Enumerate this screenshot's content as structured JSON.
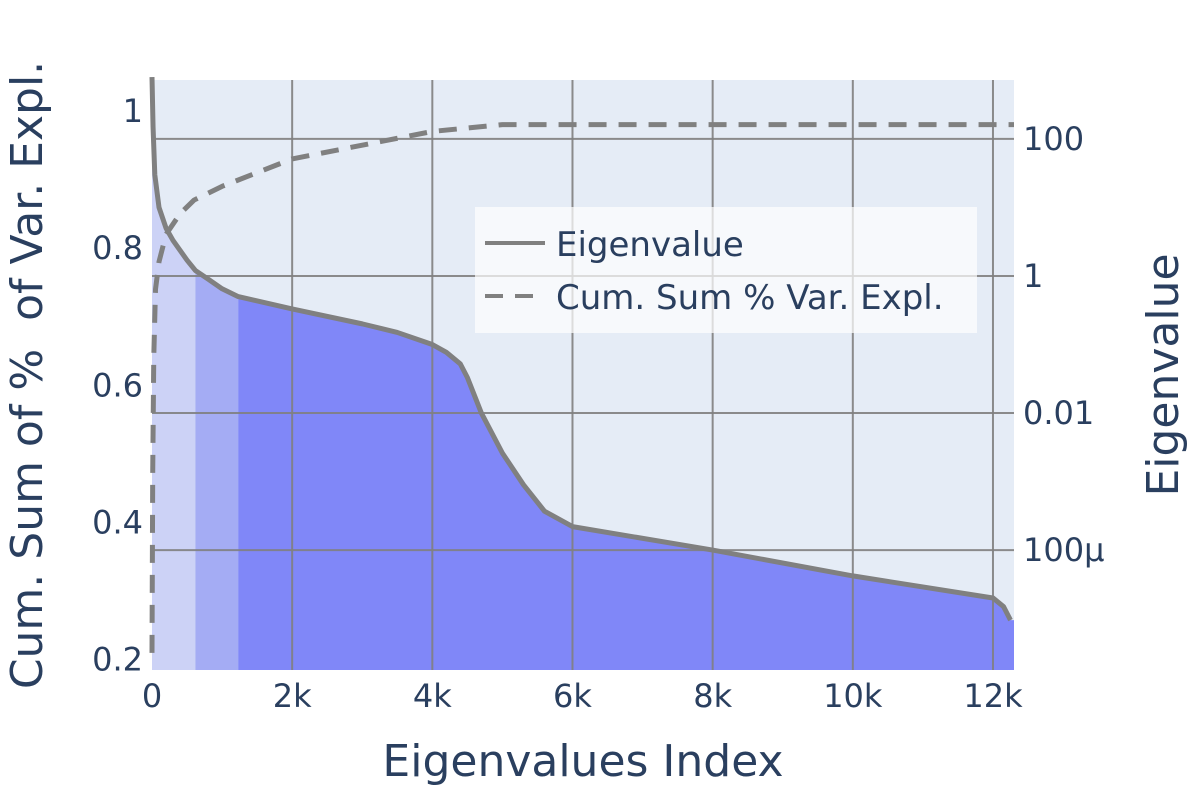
{
  "chart_data": {
    "type": "line",
    "xlabel": "Eigenvalues Index",
    "ylabel_left": "Cum. Sum of %  of Var. Expl.",
    "ylabel_right": "Eigenvalue",
    "xlim": [
      0,
      12300
    ],
    "ylim_left": [
      0.185,
      1.045
    ],
    "ylim_right_log10": [
      -5.75,
      2.86
    ],
    "x_ticks": [
      {
        "value": 0,
        "label": "0"
      },
      {
        "value": 2000,
        "label": "2k"
      },
      {
        "value": 4000,
        "label": "4k"
      },
      {
        "value": 6000,
        "label": "6k"
      },
      {
        "value": 8000,
        "label": "8k"
      },
      {
        "value": 10000,
        "label": "10k"
      },
      {
        "value": 12000,
        "label": "12k"
      }
    ],
    "y_left_ticks": [
      {
        "value": 0.2,
        "label": "0.2"
      },
      {
        "value": 0.4,
        "label": "0.4"
      },
      {
        "value": 0.6,
        "label": "0.6"
      },
      {
        "value": 0.8,
        "label": "0.8"
      },
      {
        "value": 1.0,
        "label": "1"
      }
    ],
    "y_right_ticks": [
      {
        "value": 100,
        "label": "100"
      },
      {
        "value": 1,
        "label": "1"
      },
      {
        "value": 0.01,
        "label": "0.01"
      },
      {
        "value": 0.0001,
        "label": "100μ"
      }
    ],
    "grid": true,
    "legend": {
      "placement": "upper-right-inside",
      "entries": [
        {
          "label": "Eigenvalue",
          "style": "solid"
        },
        {
          "label": "Cum. Sum % Var. Expl.",
          "style": "dashed"
        }
      ]
    },
    "shaded_regions": [
      {
        "x_start": 0,
        "x_end": 620,
        "color": "#ccd2f6"
      },
      {
        "x_start": 620,
        "x_end": 1230,
        "color": "#a4acf4"
      },
      {
        "x_start": 1230,
        "x_end": 12300,
        "color": "#8087f8"
      }
    ],
    "series": [
      {
        "name": "Eigenvalue",
        "axis": "right",
        "scale": "log",
        "color": "#808080",
        "dash": "solid",
        "points": [
          [
            0,
            800
          ],
          [
            15,
            150
          ],
          [
            40,
            30
          ],
          [
            100,
            10
          ],
          [
            200,
            5
          ],
          [
            300,
            3.3
          ],
          [
            500,
            1.7
          ],
          [
            620,
            1.2
          ],
          [
            800,
            0.9
          ],
          [
            1000,
            0.65
          ],
          [
            1230,
            0.5
          ],
          [
            2000,
            0.33
          ],
          [
            3000,
            0.2
          ],
          [
            3500,
            0.15
          ],
          [
            4000,
            0.1
          ],
          [
            4200,
            0.077
          ],
          [
            4400,
            0.052
          ],
          [
            4500,
            0.033
          ],
          [
            4700,
            0.01
          ],
          [
            5000,
            0.0026
          ],
          [
            5300,
            0.0009
          ],
          [
            5600,
            0.00037
          ],
          [
            6000,
            0.00022
          ],
          [
            8000,
            0.0001
          ],
          [
            10000,
            4.2e-05
          ],
          [
            12000,
            2e-05
          ],
          [
            12150,
            1.5e-05
          ],
          [
            12250,
            9.5e-06
          ]
        ]
      },
      {
        "name": "Cum. Sum % Var. Expl.",
        "axis": "left",
        "scale": "linear",
        "color": "#808080",
        "dash": "dashed",
        "points": [
          [
            0,
            0.21
          ],
          [
            10,
            0.47
          ],
          [
            25,
            0.64
          ],
          [
            50,
            0.74
          ],
          [
            100,
            0.78
          ],
          [
            200,
            0.82
          ],
          [
            400,
            0.85
          ],
          [
            600,
            0.87
          ],
          [
            1000,
            0.89
          ],
          [
            1500,
            0.91
          ],
          [
            2000,
            0.93
          ],
          [
            3000,
            0.95
          ],
          [
            4000,
            0.97
          ],
          [
            5000,
            0.98
          ],
          [
            6000,
            0.98
          ],
          [
            8000,
            0.98
          ],
          [
            10000,
            0.98
          ],
          [
            12300,
            0.98
          ]
        ]
      }
    ]
  }
}
